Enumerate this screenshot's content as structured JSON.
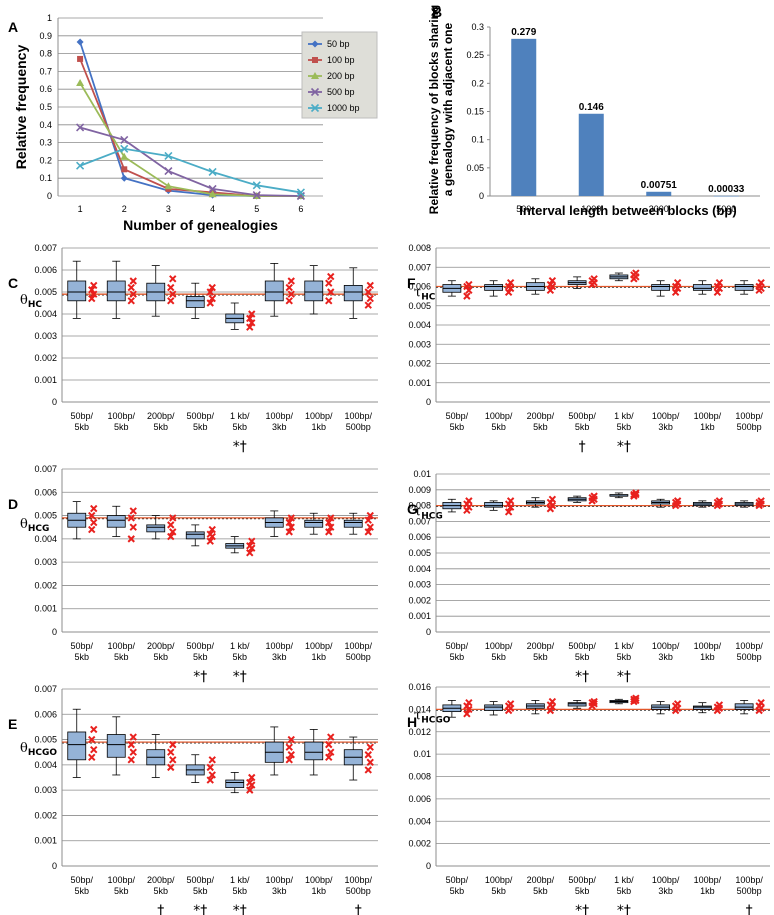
{
  "chart_data": [
    {
      "id": "A",
      "type": "line",
      "panel_label": "A",
      "xlabel": "Number of genealogies",
      "ylabel": "Relative frequency",
      "x": [
        1,
        2,
        3,
        4,
        5,
        6
      ],
      "xticks": [
        "1",
        "2",
        "3",
        "4",
        "5",
        "6"
      ],
      "ylim": [
        0,
        1
      ],
      "yticks": [
        "0",
        "0.1",
        "0.2",
        "0.3",
        "0.4",
        "0.5",
        "0.6",
        "0.7",
        "0.8",
        "0.9",
        "1"
      ],
      "legend": "top-right",
      "series": [
        {
          "name": "50 bp",
          "color": "#4472C4",
          "marker": "diamond",
          "values": [
            0.865,
            0.1,
            0.03,
            0.005,
            0.0,
            0.0
          ]
        },
        {
          "name": "100 bp",
          "color": "#C0504D",
          "marker": "square",
          "values": [
            0.77,
            0.15,
            0.04,
            0.02,
            0.0,
            0.0
          ]
        },
        {
          "name": "200 bp",
          "color": "#9BBB59",
          "marker": "triangle",
          "values": [
            0.635,
            0.22,
            0.055,
            0.01,
            0.0,
            0.0
          ]
        },
        {
          "name": "500 bp",
          "color": "#8064A2",
          "marker": "x",
          "values": [
            0.385,
            0.315,
            0.14,
            0.04,
            0.005,
            0.0
          ]
        },
        {
          "name": "1000 bp",
          "color": "#4BACC6",
          "marker": "x",
          "values": [
            0.17,
            0.265,
            0.225,
            0.135,
            0.06,
            0.02
          ]
        }
      ]
    },
    {
      "id": "B",
      "type": "bar",
      "panel_label": "B",
      "xlabel": "Interval length between blocks (bp)",
      "ylabel_line1": "Relative frequency of blocks sharing",
      "ylabel_line2": "a genealogy with adjacent one",
      "categories": [
        "500",
        "1000",
        "3000",
        "5000"
      ],
      "values": [
        0.279,
        0.146,
        0.00751,
        0.00033
      ],
      "data_labels": [
        "0.279",
        "0.146",
        "0.00751",
        "0.00033"
      ],
      "ylim": [
        0,
        0.3
      ],
      "yticks": [
        "0",
        "0.05",
        "0.1",
        "0.15",
        "0.2",
        "0.25",
        "0.3"
      ],
      "color": "#4F81BD"
    },
    {
      "id": "C",
      "type": "box",
      "panel_label": "C",
      "ylabel_main": "θ",
      "ylabel_sub": "HC",
      "ylim": [
        0,
        0.007
      ],
      "yticks": [
        "0",
        "0.001",
        "0.002",
        "0.003",
        "0.004",
        "0.005",
        "0.006",
        "0.007"
      ],
      "reference": 0.0049,
      "categories": [
        [
          "50bp/",
          "5kb"
        ],
        [
          "100bp/",
          "5kb"
        ],
        [
          "200bp/",
          "5kb"
        ],
        [
          "500bp/",
          "5kb"
        ],
        [
          "1 kb/",
          "5kb"
        ],
        [
          "100bp/",
          "3kb"
        ],
        [
          "100bp/",
          "1kb"
        ],
        [
          "100bp/",
          "500bp"
        ]
      ],
      "boxes": [
        [
          0.0038,
          0.0046,
          0.005,
          0.0055,
          0.0064
        ],
        [
          0.0038,
          0.0046,
          0.005,
          0.0055,
          0.0064
        ],
        [
          0.0039,
          0.0046,
          0.005,
          0.0054,
          0.0062
        ],
        [
          0.0038,
          0.0043,
          0.0046,
          0.0048,
          0.0054
        ],
        [
          0.0033,
          0.0036,
          0.0038,
          0.004,
          0.0045
        ],
        [
          0.0039,
          0.0046,
          0.005,
          0.0055,
          0.0063
        ],
        [
          0.004,
          0.0046,
          0.005,
          0.0055,
          0.0062
        ],
        [
          0.0038,
          0.0046,
          0.005,
          0.0053,
          0.0061
        ]
      ],
      "reps": [
        [
          0.0047,
          0.0049,
          0.0051,
          0.0053
        ],
        [
          0.0046,
          0.0049,
          0.0052,
          0.0055
        ],
        [
          0.0046,
          0.0049,
          0.0052,
          0.0056
        ],
        [
          0.0045,
          0.0047,
          0.005,
          0.0052
        ],
        [
          0.0034,
          0.0036,
          0.0038,
          0.004
        ],
        [
          0.0046,
          0.0049,
          0.0052,
          0.0055
        ],
        [
          0.0046,
          0.005,
          0.0054,
          0.0057
        ],
        [
          0.0044,
          0.0047,
          0.005,
          0.0053
        ]
      ],
      "marks": [
        "",
        "",
        "",
        "",
        "*†",
        "",
        "",
        ""
      ]
    },
    {
      "id": "F",
      "type": "box",
      "panel_label": "F",
      "ylabel_main": "τ",
      "ylabel_sub": "HC",
      "ylim": [
        0,
        0.008
      ],
      "yticks": [
        "0",
        "0.001",
        "0.002",
        "0.003",
        "0.004",
        "0.005",
        "0.006",
        "0.007",
        "0.008"
      ],
      "reference": 0.006,
      "categories": [
        [
          "50bp/",
          "5kb"
        ],
        [
          "100bp/",
          "5kb"
        ],
        [
          "200bp/",
          "5kb"
        ],
        [
          "500bp/",
          "5kb"
        ],
        [
          "1 kb/",
          "5kb"
        ],
        [
          "100bp/",
          "3kb"
        ],
        [
          "100bp/",
          "1kb"
        ],
        [
          "100bp/",
          "500bp"
        ]
      ],
      "boxes": [
        [
          0.0055,
          0.0057,
          0.0059,
          0.0061,
          0.0063
        ],
        [
          0.0055,
          0.0058,
          0.006,
          0.0061,
          0.0063
        ],
        [
          0.0056,
          0.0058,
          0.006,
          0.0062,
          0.0064
        ],
        [
          0.0059,
          0.0061,
          0.0062,
          0.0063,
          0.0065
        ],
        [
          0.0063,
          0.0064,
          0.0065,
          0.0066,
          0.0067
        ],
        [
          0.0055,
          0.0058,
          0.006,
          0.0061,
          0.0063
        ],
        [
          0.0056,
          0.0058,
          0.0059,
          0.0061,
          0.0063
        ],
        [
          0.0056,
          0.0058,
          0.006,
          0.0061,
          0.0063
        ]
      ],
      "reps": [
        [
          0.0055,
          0.0058,
          0.006,
          0.0061
        ],
        [
          0.0057,
          0.0059,
          0.006,
          0.0062
        ],
        [
          0.0058,
          0.006,
          0.0061,
          0.0063
        ],
        [
          0.0061,
          0.0062,
          0.0063,
          0.0064
        ],
        [
          0.0064,
          0.0065,
          0.0066,
          0.0067
        ],
        [
          0.0057,
          0.0059,
          0.006,
          0.0062
        ],
        [
          0.0057,
          0.0059,
          0.006,
          0.0062
        ],
        [
          0.0058,
          0.0059,
          0.006,
          0.0062
        ]
      ],
      "marks": [
        "",
        "",
        "",
        "†",
        "*†",
        "",
        "",
        ""
      ]
    },
    {
      "id": "D",
      "type": "box",
      "panel_label": "D",
      "ylabel_main": "θ",
      "ylabel_sub": "HCG",
      "ylim": [
        0,
        0.007
      ],
      "yticks": [
        "0",
        "0.001",
        "0.002",
        "0.003",
        "0.004",
        "0.005",
        "0.006",
        "0.007"
      ],
      "reference": 0.0049,
      "categories": [
        [
          "50bp/",
          "5kb"
        ],
        [
          "100bp/",
          "5kb"
        ],
        [
          "200bp/",
          "5kb"
        ],
        [
          "500bp/",
          "5kb"
        ],
        [
          "1 kb/",
          "5kb"
        ],
        [
          "100bp/",
          "3kb"
        ],
        [
          "100bp/",
          "1kb"
        ],
        [
          "100bp/",
          "500bp"
        ]
      ],
      "boxes": [
        [
          0.004,
          0.0045,
          0.0048,
          0.0051,
          0.0056
        ],
        [
          0.0041,
          0.0045,
          0.0048,
          0.005,
          0.0054
        ],
        [
          0.004,
          0.0043,
          0.0045,
          0.0046,
          0.005
        ],
        [
          0.0037,
          0.004,
          0.0042,
          0.0043,
          0.0046
        ],
        [
          0.0034,
          0.0036,
          0.0037,
          0.0038,
          0.0041
        ],
        [
          0.0041,
          0.0045,
          0.0047,
          0.0049,
          0.0052
        ],
        [
          0.0042,
          0.0045,
          0.0047,
          0.0048,
          0.0051
        ],
        [
          0.0042,
          0.0045,
          0.0047,
          0.0048,
          0.0051
        ]
      ],
      "reps": [
        [
          0.0044,
          0.0047,
          0.005,
          0.0053
        ],
        [
          0.004,
          0.0045,
          0.0049,
          0.0052
        ],
        [
          0.0041,
          0.0043,
          0.0046,
          0.0049
        ],
        [
          0.0039,
          0.0041,
          0.0042,
          0.0044
        ],
        [
          0.0034,
          0.0036,
          0.0037,
          0.0039
        ],
        [
          0.0043,
          0.0045,
          0.0047,
          0.0049
        ],
        [
          0.0043,
          0.0045,
          0.0047,
          0.0049
        ],
        [
          0.0043,
          0.0045,
          0.0048,
          0.005
        ]
      ],
      "marks": [
        "",
        "",
        "",
        "*†",
        "*†",
        "",
        "",
        ""
      ]
    },
    {
      "id": "G",
      "type": "box",
      "panel_label": "G",
      "ylabel_main": "τ",
      "ylabel_sub": "HCG",
      "ylim": [
        0,
        0.01
      ],
      "yticks": [
        "0",
        "0.001",
        "0.002",
        "0.003",
        "0.004",
        "0.005",
        "0.006",
        "0.007",
        "0.008",
        "0.009",
        "0.01"
      ],
      "reference": 0.008,
      "categories": [
        [
          "50bp/",
          "5kb"
        ],
        [
          "100bp/",
          "5kb"
        ],
        [
          "200bp/",
          "5kb"
        ],
        [
          "500bp/",
          "5kb"
        ],
        [
          "1 kb/",
          "5kb"
        ],
        [
          "100bp/",
          "3kb"
        ],
        [
          "100bp/",
          "1kb"
        ],
        [
          "100bp/",
          "500bp"
        ]
      ],
      "boxes": [
        [
          0.0076,
          0.0078,
          0.008,
          0.0082,
          0.0084
        ],
        [
          0.0077,
          0.0079,
          0.008,
          0.0082,
          0.0083
        ],
        [
          0.0079,
          0.0081,
          0.0082,
          0.0083,
          0.0085
        ],
        [
          0.0082,
          0.0083,
          0.0084,
          0.0085,
          0.0086
        ],
        [
          0.0085,
          0.0086,
          0.0086,
          0.0087,
          0.0088
        ],
        [
          0.0079,
          0.0081,
          0.0082,
          0.0083,
          0.0084
        ],
        [
          0.0079,
          0.008,
          0.0081,
          0.0082,
          0.0083
        ],
        [
          0.0079,
          0.008,
          0.0081,
          0.0082,
          0.0083
        ]
      ],
      "reps": [
        [
          0.0077,
          0.0079,
          0.0081,
          0.0083
        ],
        [
          0.0076,
          0.0079,
          0.0081,
          0.0083
        ],
        [
          0.0078,
          0.008,
          0.0082,
          0.0084
        ],
        [
          0.0083,
          0.0084,
          0.0085,
          0.0086
        ],
        [
          0.0086,
          0.0087,
          0.0087,
          0.0088
        ],
        [
          0.008,
          0.0081,
          0.0082,
          0.0083
        ],
        [
          0.008,
          0.0081,
          0.0082,
          0.0083
        ],
        [
          0.008,
          0.0081,
          0.0082,
          0.0083
        ]
      ],
      "marks": [
        "",
        "",
        "",
        "*†",
        "*†",
        "",
        "",
        ""
      ]
    },
    {
      "id": "E",
      "type": "box",
      "panel_label": "E",
      "ylabel_main": "θ",
      "ylabel_sub": "HCGO",
      "ylim": [
        0,
        0.007
      ],
      "yticks": [
        "0",
        "0.001",
        "0.002",
        "0.003",
        "0.004",
        "0.005",
        "0.006",
        "0.007"
      ],
      "reference": 0.0049,
      "categories": [
        [
          "50bp/",
          "5kb"
        ],
        [
          "100bp/",
          "5kb"
        ],
        [
          "200bp/",
          "5kb"
        ],
        [
          "500bp/",
          "5kb"
        ],
        [
          "1 kb/",
          "5kb"
        ],
        [
          "100bp/",
          "3kb"
        ],
        [
          "100bp/",
          "1kb"
        ],
        [
          "100bp/",
          "500bp"
        ]
      ],
      "boxes": [
        [
          0.0035,
          0.0042,
          0.0048,
          0.0053,
          0.0062
        ],
        [
          0.0036,
          0.0043,
          0.0048,
          0.0052,
          0.0059
        ],
        [
          0.0035,
          0.004,
          0.0043,
          0.0046,
          0.0052
        ],
        [
          0.0033,
          0.0036,
          0.0038,
          0.004,
          0.0044
        ],
        [
          0.0029,
          0.0031,
          0.0033,
          0.0034,
          0.0037
        ],
        [
          0.0036,
          0.0041,
          0.0045,
          0.0049,
          0.0055
        ],
        [
          0.0036,
          0.0042,
          0.0045,
          0.0049,
          0.0054
        ],
        [
          0.0034,
          0.004,
          0.0043,
          0.0046,
          0.0051
        ]
      ],
      "reps": [
        [
          0.0043,
          0.0046,
          0.005,
          0.0054
        ],
        [
          0.0042,
          0.0045,
          0.0048,
          0.0051
        ],
        [
          0.0039,
          0.0042,
          0.0045,
          0.0048
        ],
        [
          0.0034,
          0.0036,
          0.0039,
          0.0042
        ],
        [
          0.003,
          0.0032,
          0.0033,
          0.0035
        ],
        [
          0.0042,
          0.0044,
          0.0047,
          0.005
        ],
        [
          0.0043,
          0.0045,
          0.0048,
          0.0051
        ],
        [
          0.0038,
          0.0041,
          0.0044,
          0.0047
        ]
      ],
      "marks": [
        "",
        "",
        "†",
        "*†",
        "*†",
        "",
        "",
        "†"
      ]
    },
    {
      "id": "H",
      "type": "box",
      "panel_label": "H",
      "ylabel_main": "τ",
      "ylabel_sub": "HCGO",
      "ylim": [
        0,
        0.016
      ],
      "yticks": [
        "0",
        "0.002",
        "0.004",
        "0.006",
        "0.008",
        "0.01",
        "0.012",
        "0.014",
        "0.016"
      ],
      "reference": 0.014,
      "categories": [
        [
          "50bp/",
          "5kb"
        ],
        [
          "100bp/",
          "5kb"
        ],
        [
          "200bp/",
          "5kb"
        ],
        [
          "500bp/",
          "5kb"
        ],
        [
          "1 kb/",
          "5kb"
        ],
        [
          "100bp/",
          "3kb"
        ],
        [
          "100bp/",
          "1kb"
        ],
        [
          "100bp/",
          "500bp"
        ]
      ],
      "boxes": [
        [
          0.0133,
          0.0138,
          0.0141,
          0.0144,
          0.0148
        ],
        [
          0.0135,
          0.0139,
          0.0142,
          0.0144,
          0.0147
        ],
        [
          0.0136,
          0.0141,
          0.0143,
          0.0145,
          0.0148
        ],
        [
          0.0141,
          0.0143,
          0.0145,
          0.0146,
          0.0148
        ],
        [
          0.0145,
          0.0146,
          0.0147,
          0.0148,
          0.0149
        ],
        [
          0.0136,
          0.014,
          0.0142,
          0.0144,
          0.0147
        ],
        [
          0.0137,
          0.014,
          0.0142,
          0.0143,
          0.0146
        ],
        [
          0.0136,
          0.014,
          0.0142,
          0.0145,
          0.0148
        ]
      ],
      "reps": [
        [
          0.0136,
          0.014,
          0.0143,
          0.0146
        ],
        [
          0.0139,
          0.0141,
          0.0143,
          0.0145
        ],
        [
          0.0139,
          0.0142,
          0.0144,
          0.0147
        ],
        [
          0.0143,
          0.0145,
          0.0146,
          0.0147
        ],
        [
          0.0147,
          0.0148,
          0.0149,
          0.015
        ],
        [
          0.0139,
          0.0141,
          0.0143,
          0.0145
        ],
        [
          0.0139,
          0.0141,
          0.0142,
          0.0144
        ],
        [
          0.0139,
          0.0141,
          0.0143,
          0.0146
        ]
      ],
      "marks": [
        "",
        "",
        "",
        "*†",
        "*†",
        "",
        "",
        "†"
      ]
    }
  ]
}
